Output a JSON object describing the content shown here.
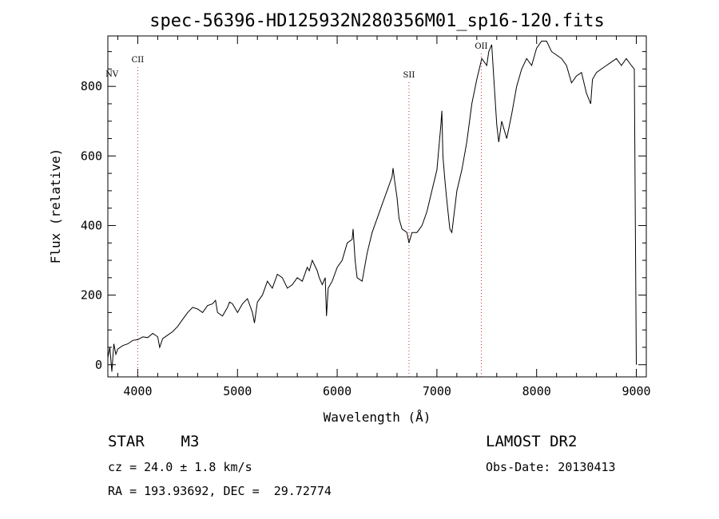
{
  "chart_data": {
    "type": "line",
    "title": "spec-56396-HD125932N280356M01_sp16-120.fits",
    "xlabel": "Wavelength (Å)",
    "ylabel": "Flux (relative)",
    "xlim": [
      3700,
      9100
    ],
    "ylim": [
      -35,
      945
    ],
    "x_ticks": [
      4000,
      5000,
      6000,
      7000,
      8000,
      9000
    ],
    "y_ticks": [
      0,
      200,
      400,
      600,
      800
    ],
    "grid": false,
    "series": [
      {
        "x": [
          3700,
          3720,
          3740,
          3760,
          3780,
          3800,
          3850,
          3900,
          3950,
          4000,
          4050,
          4100,
          4150,
          4200,
          4220,
          4250,
          4300,
          4350,
          4400,
          4450,
          4500,
          4550,
          4600,
          4650,
          4700,
          4750,
          4780,
          4800,
          4850,
          4900,
          4920,
          4950,
          5000,
          5050,
          5100,
          5150,
          5170,
          5200,
          5250,
          5300,
          5350,
          5400,
          5450,
          5500,
          5550,
          5600,
          5650,
          5700,
          5720,
          5750,
          5800,
          5820,
          5850,
          5880,
          5893,
          5910,
          5950,
          6000,
          6050,
          6100,
          6150,
          6160,
          6180,
          6200,
          6250,
          6300,
          6350,
          6400,
          6450,
          6500,
          6550,
          6560,
          6580,
          6600,
          6620,
          6650,
          6700,
          6720,
          6750,
          6800,
          6850,
          6900,
          6950,
          7000,
          7040,
          7050,
          7060,
          7080,
          7100,
          7130,
          7150,
          7200,
          7250,
          7300,
          7350,
          7400,
          7450,
          7500,
          7520,
          7550,
          7580,
          7600,
          7620,
          7650,
          7700,
          7750,
          7800,
          7850,
          7900,
          7950,
          8000,
          8050,
          8100,
          8150,
          8200,
          8250,
          8300,
          8350,
          8400,
          8450,
          8500,
          8542,
          8560,
          8600,
          8650,
          8700,
          8750,
          8800,
          8850,
          8900,
          8950,
          8980,
          8990,
          9000
        ],
        "values": [
          20,
          50,
          -20,
          60,
          30,
          45,
          55,
          60,
          70,
          72,
          80,
          78,
          90,
          80,
          50,
          75,
          85,
          95,
          110,
          130,
          150,
          165,
          160,
          150,
          170,
          175,
          185,
          150,
          140,
          165,
          180,
          175,
          150,
          175,
          190,
          150,
          120,
          180,
          200,
          240,
          220,
          260,
          250,
          220,
          230,
          250,
          240,
          280,
          270,
          300,
          270,
          250,
          230,
          250,
          140,
          220,
          240,
          280,
          300,
          350,
          360,
          390,
          300,
          250,
          240,
          320,
          380,
          420,
          460,
          500,
          540,
          565,
          520,
          480,
          420,
          390,
          380,
          350,
          380,
          380,
          400,
          440,
          500,
          560,
          690,
          730,
          600,
          530,
          470,
          390,
          380,
          500,
          560,
          640,
          750,
          820,
          880,
          860,
          900,
          920,
          780,
          690,
          640,
          700,
          650,
          720,
          800,
          850,
          880,
          860,
          910,
          930,
          930,
          900,
          890,
          880,
          860,
          810,
          830,
          840,
          780,
          750,
          820,
          840,
          850,
          860,
          870,
          880,
          860,
          880,
          860,
          850,
          400,
          0
        ]
      }
    ],
    "line_markers": [
      {
        "label": "NV",
        "x": 3725
      },
      {
        "label": "CII",
        "x": 4000
      },
      {
        "label": "SII",
        "x": 6720
      },
      {
        "label": "OII",
        "x": 7445
      }
    ]
  },
  "info": {
    "object_class": "STAR    M3",
    "survey": "LAMOST DR2",
    "cz": "cz = 24.0 ± 1.8 km/s",
    "obs_date": "Obs-Date: 20130413",
    "coords": "RA = 193.93692, DEC =  29.72774"
  }
}
